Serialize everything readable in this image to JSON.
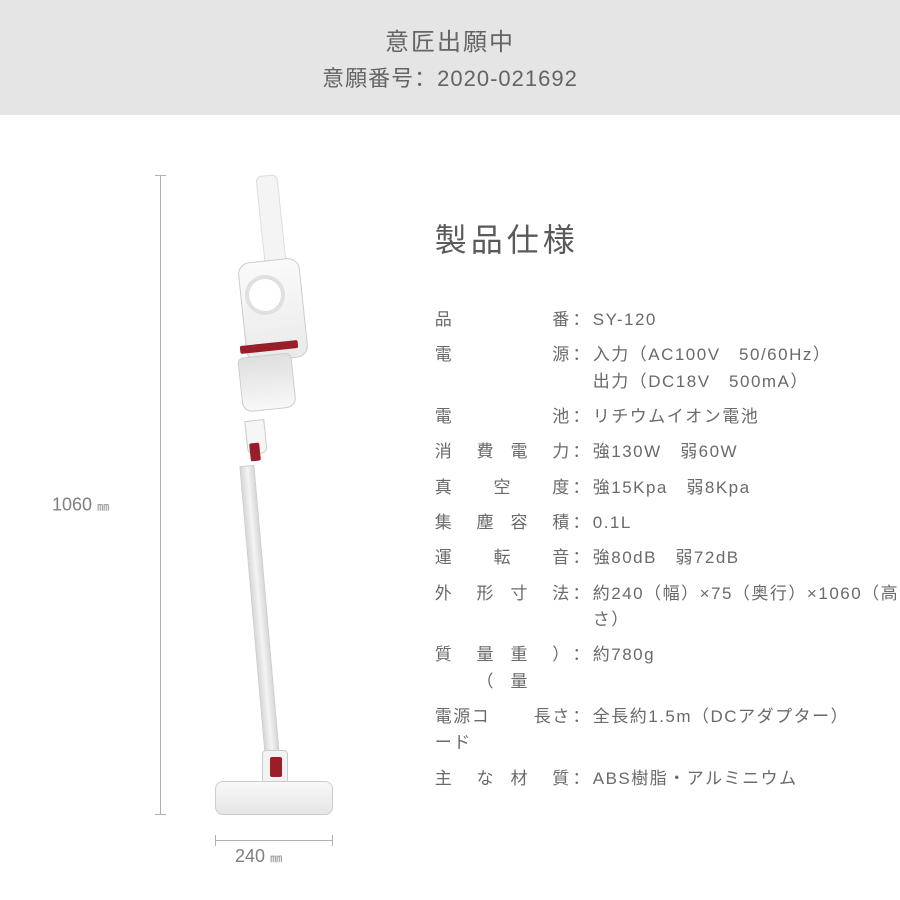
{
  "header": {
    "title": "意匠出願中",
    "sub": "意願番号：2020-021692"
  },
  "diagram": {
    "height_value": "1060",
    "height_unit": "㎜",
    "width_value": "240",
    "width_unit": "㎜",
    "product_colors": {
      "body": "#f4f4f4",
      "accent": "#9a1e2a",
      "outline": "#cccccc"
    }
  },
  "specs": {
    "title": "製品仕様",
    "rows": [
      {
        "label": [
          "品",
          "番"
        ],
        "value": "SY-120"
      },
      {
        "label": [
          "電",
          "源"
        ],
        "value": "入力（AC100V　50/60Hz）\n出力（DC18V　500mA）"
      },
      {
        "label": [
          "電",
          "池"
        ],
        "value": "リチウムイオン電池"
      },
      {
        "label": [
          "消",
          "費",
          "電",
          "力"
        ],
        "value": "強130W　弱60W"
      },
      {
        "label": [
          "真",
          "空",
          "度"
        ],
        "value": "強15Kpa　弱8Kpa"
      },
      {
        "label": [
          "集",
          "塵",
          "容",
          "積"
        ],
        "value": "0.1L"
      },
      {
        "label": [
          "運",
          "転",
          "音"
        ],
        "value": "強80dB　弱72dB"
      },
      {
        "label": [
          "外",
          "形",
          "寸",
          "法"
        ],
        "value": "約240（幅）×75（奥行）×1060（高さ）"
      },
      {
        "label": [
          "質",
          "量（",
          "重量",
          "）"
        ],
        "value": "約780g"
      },
      {
        "label": [
          "電源コード",
          "長さ"
        ],
        "value": "全長約1.5m（DCアダプター）"
      },
      {
        "label": [
          "主",
          "な",
          "材",
          "質"
        ],
        "value": "ABS樹脂・アルミニウム"
      }
    ]
  },
  "styling": {
    "banner_bg": "#e5e5e5",
    "text_color": "#646464",
    "title_fontsize": 32,
    "row_fontsize": 17
  }
}
